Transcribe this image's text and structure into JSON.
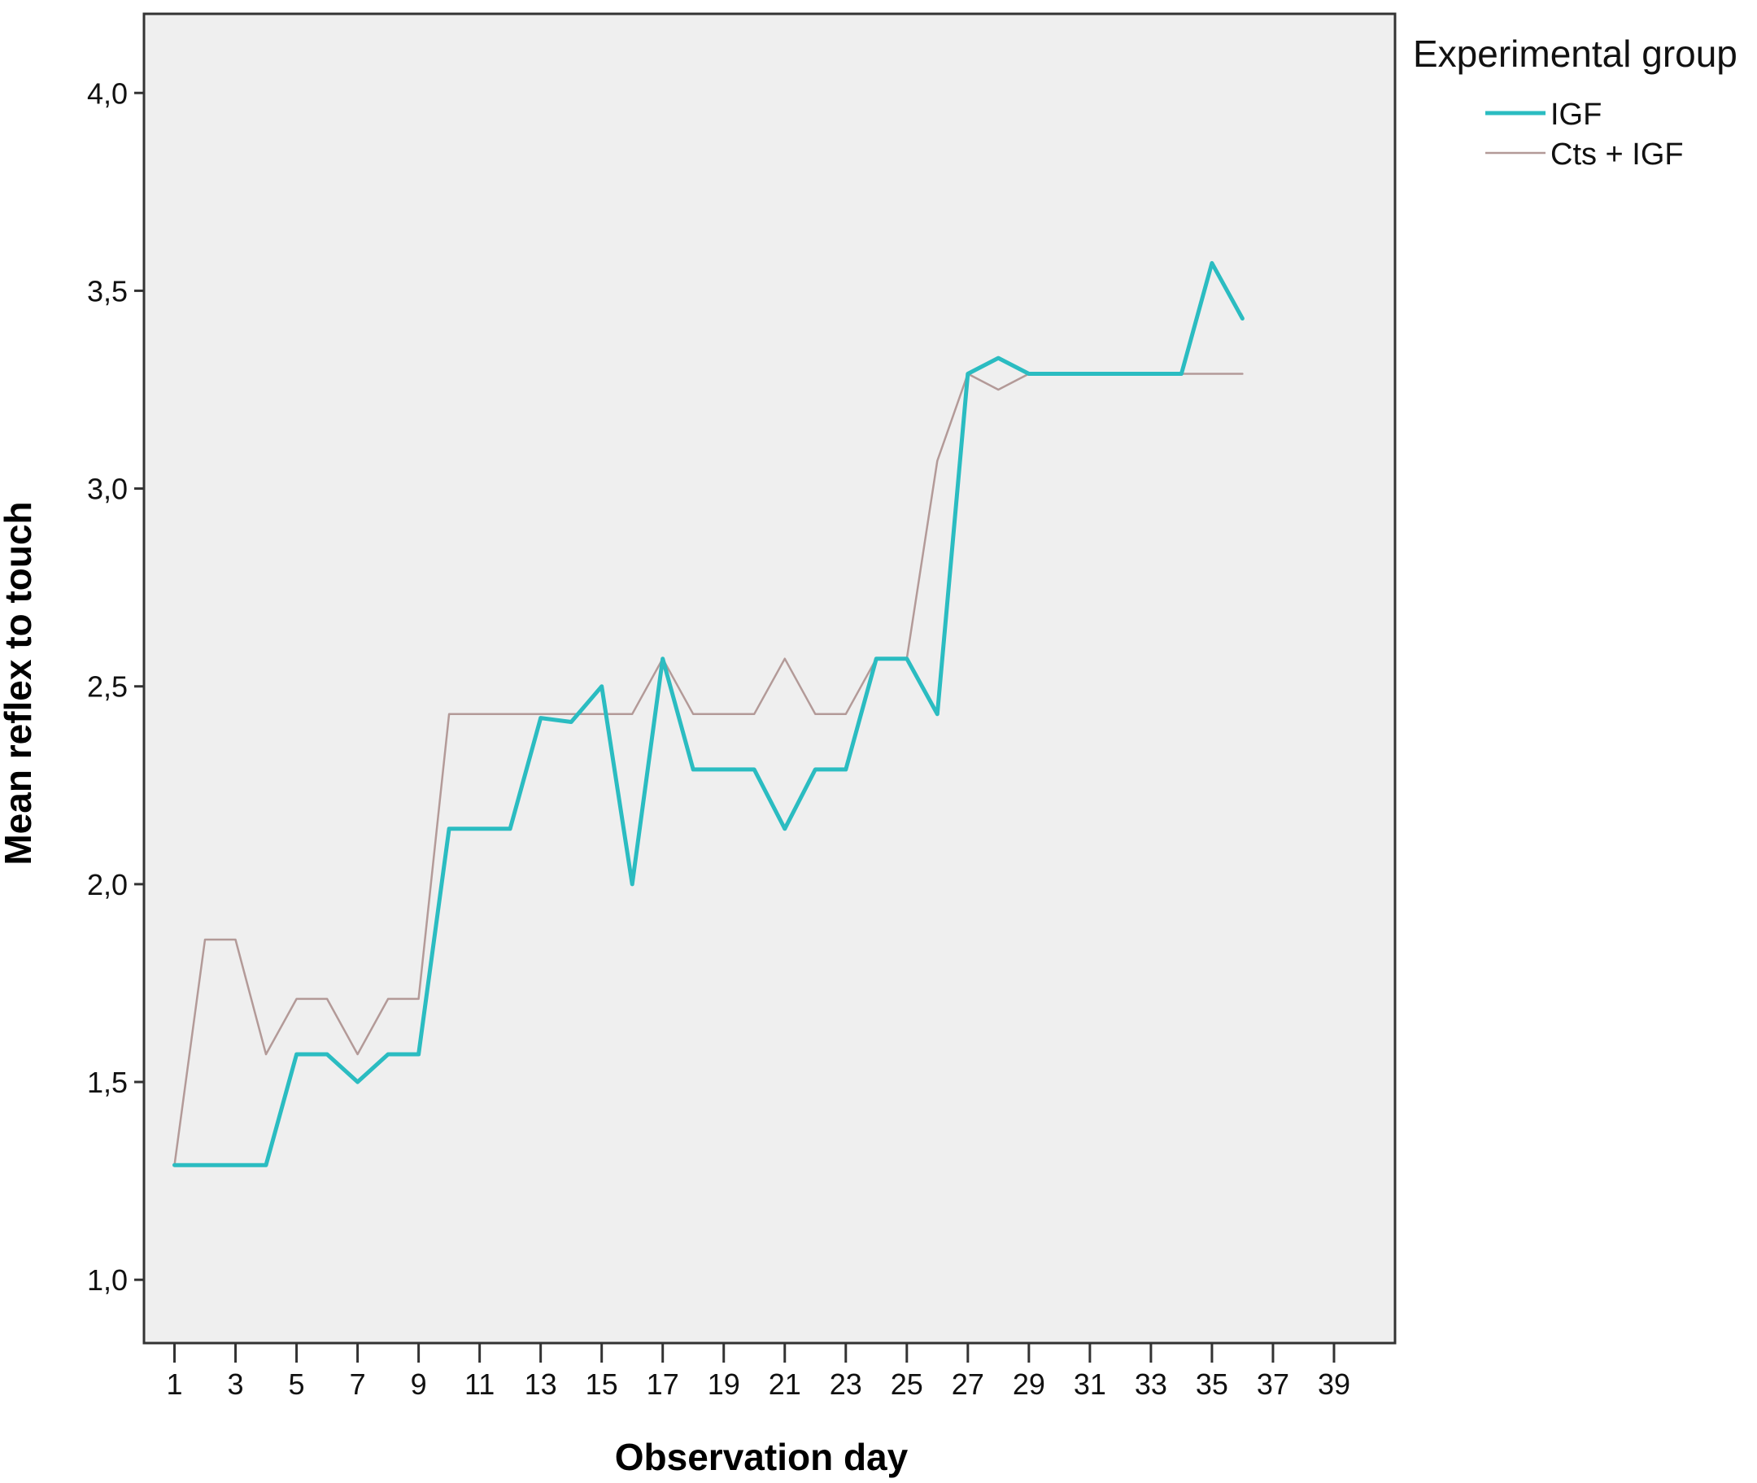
{
  "chart_data": {
    "type": "line",
    "xlabel": "Observation day",
    "ylabel": "Mean reflex to touch",
    "xlim": [
      0,
      41
    ],
    "ylim": [
      0.84,
      4.2
    ],
    "x_ticks": [
      "1",
      "3",
      "5",
      "7",
      "9",
      "11",
      "13",
      "15",
      "17",
      "19",
      "21",
      "23",
      "25",
      "27",
      "29",
      "31",
      "33",
      "35",
      "37",
      "39"
    ],
    "y_ticks": [
      "1,0",
      "1,5",
      "2,0",
      "2,5",
      "3,0",
      "3,5",
      "4,0"
    ],
    "grid": false,
    "legend": {
      "title": "Experimental group",
      "placement": "outside-right-top"
    },
    "plot_background": "#efefef",
    "series": [
      {
        "name": "IGF",
        "color": "#2bbcc1",
        "x": [
          1,
          2,
          3,
          4,
          5,
          6,
          7,
          8,
          9,
          10,
          11,
          12,
          13,
          14,
          15,
          16,
          17,
          18,
          19,
          20,
          21,
          22,
          23,
          24,
          25,
          26,
          27,
          28,
          29,
          30,
          31,
          32,
          33,
          34,
          35,
          36
        ],
        "values": [
          1.29,
          1.29,
          1.29,
          1.29,
          1.57,
          1.57,
          1.5,
          1.57,
          1.57,
          2.14,
          2.14,
          2.14,
          2.42,
          2.41,
          2.5,
          2.0,
          2.57,
          2.29,
          2.29,
          2.29,
          2.14,
          2.29,
          2.29,
          2.57,
          2.57,
          2.43,
          3.29,
          3.33,
          3.29,
          3.29,
          3.29,
          3.29,
          3.29,
          3.29,
          3.57,
          3.43
        ]
      },
      {
        "name": "Cts + IGF",
        "color": "#b39a98",
        "x": [
          1,
          2,
          3,
          4,
          5,
          6,
          7,
          8,
          9,
          10,
          11,
          12,
          13,
          14,
          15,
          16,
          17,
          18,
          19,
          20,
          21,
          22,
          23,
          24,
          25,
          26,
          27,
          28,
          29,
          30,
          31,
          32,
          33,
          34,
          35,
          36
        ],
        "values": [
          1.29,
          1.86,
          1.86,
          1.57,
          1.71,
          1.71,
          1.57,
          1.71,
          1.71,
          2.43,
          2.43,
          2.43,
          2.43,
          2.43,
          2.43,
          2.43,
          2.57,
          2.43,
          2.43,
          2.43,
          2.57,
          2.43,
          2.43,
          2.57,
          2.57,
          3.07,
          3.29,
          3.25,
          3.29,
          3.29,
          3.29,
          3.29,
          3.29,
          3.29,
          3.29,
          3.29
        ]
      }
    ]
  }
}
